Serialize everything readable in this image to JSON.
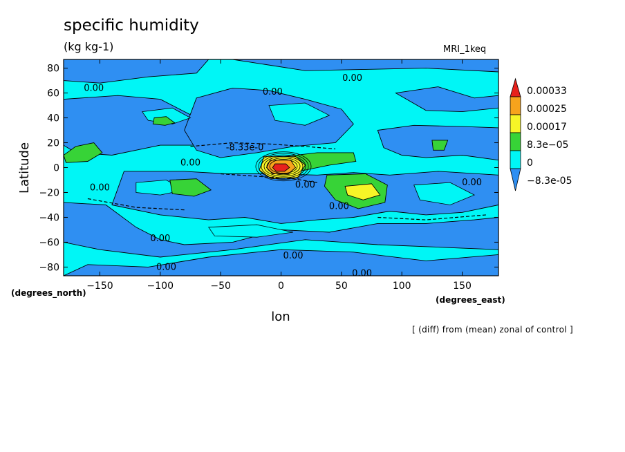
{
  "chart_data": {
    "type": "heatmap",
    "title": "specific humidity",
    "subtitle": "(kg kg-1)",
    "model_label": "MRI_1keq",
    "note": "[ (diff) from (mean) zonal of control ]",
    "xlabel": "lon",
    "ylabel": "Latitude",
    "x_units": "(degrees_east)",
    "y_units": "(degrees_north)",
    "xlim": [
      -180,
      180
    ],
    "ylim": [
      -87,
      87
    ],
    "x_ticks": [
      -150,
      -100,
      -50,
      0,
      50,
      100,
      150
    ],
    "y_ticks": [
      -80,
      -60,
      -40,
      -20,
      0,
      20,
      40,
      60,
      80
    ],
    "contour_levels": [
      "0.00033",
      "0.00025",
      "0.00017",
      "8.3e-05",
      "0",
      "-8.3e-05"
    ],
    "contour_labels": [
      {
        "text": "0.00",
        "x": -155,
        "y": 64
      },
      {
        "text": "0.00",
        "x": -7,
        "y": 61
      },
      {
        "text": "0.00",
        "x": 59,
        "y": 72
      },
      {
        "text": "-8.33e-0",
        "x": -30,
        "y": 16
      },
      {
        "text": "0.00",
        "x": -75,
        "y": 4
      },
      {
        "text": "0.00",
        "x": 20,
        "y": -14
      },
      {
        "text": "0.00",
        "x": -150,
        "y": -16
      },
      {
        "text": "0.00",
        "x": 48,
        "y": -31
      },
      {
        "text": "0.00",
        "x": 158,
        "y": -12
      },
      {
        "text": "0.00",
        "x": -100,
        "y": -57
      },
      {
        "text": "0.00",
        "x": -95,
        "y": -80
      },
      {
        "text": "0.00",
        "x": 10,
        "y": -71
      },
      {
        "text": "0.00",
        "x": 67,
        "y": -85
      }
    ],
    "colors": {
      "level_0.00033": "#e8211c",
      "level_0.00025": "#f7a31c",
      "level_0.00017": "#f7f527",
      "level_8.3e-05": "#37d337",
      "level_0": "#00f6f6",
      "level_-8.3e-05": "#2f8ff2",
      "lowest": "#2f8ff2"
    }
  }
}
